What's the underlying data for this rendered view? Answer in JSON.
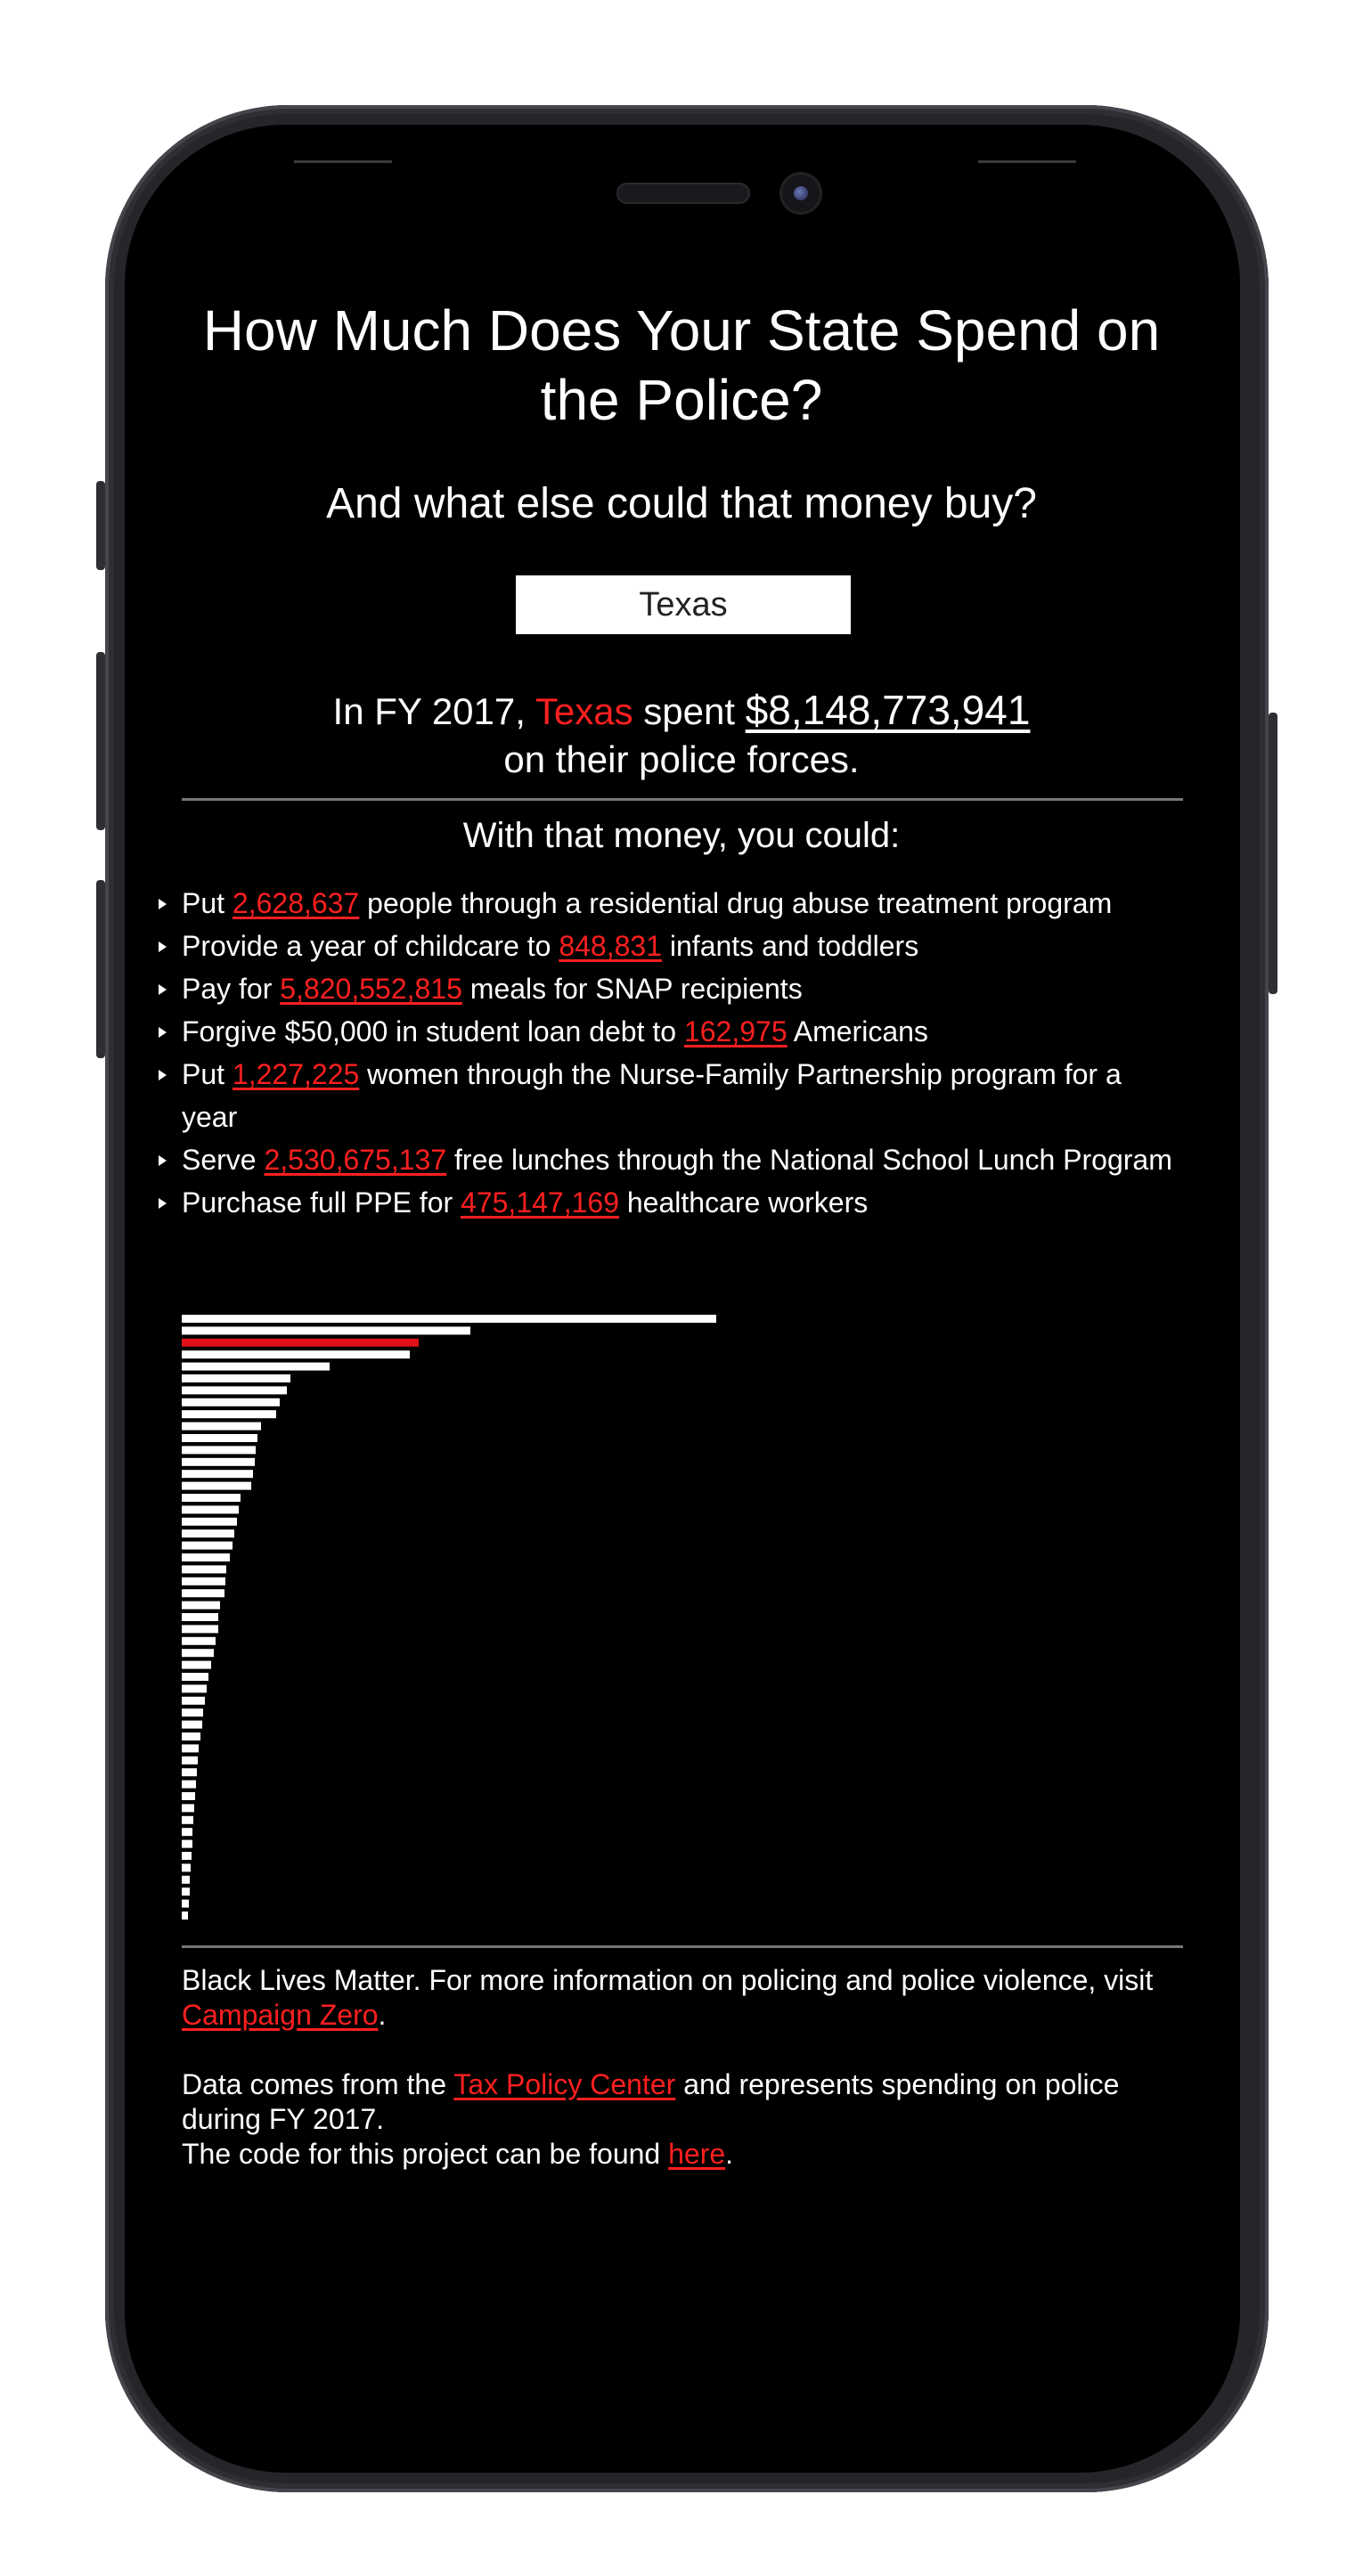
{
  "header": {
    "title": "How Much Does Your State Spend on the Police?",
    "subtitle": "And what else could that money buy?"
  },
  "selector": {
    "selected": "Texas"
  },
  "summary": {
    "prefix": "In FY 2017,",
    "state": "Texas",
    "verb": "spent",
    "amount": "$8,148,773,941",
    "suffix": "on their police forces."
  },
  "section_heading": "With that money, you could:",
  "alternatives": [
    {
      "before": "Put ",
      "value": "2,628,637",
      "after": " people through a residential drug abuse treatment program"
    },
    {
      "before": "Provide a year of childcare to ",
      "value": "848,831",
      "after": " infants and toddlers"
    },
    {
      "before": "Pay for ",
      "value": "5,820,552,815",
      "after": " meals for SNAP recipients"
    },
    {
      "before": "Forgive $50,000 in student loan debt to ",
      "value": "162,975",
      "after": " Americans"
    },
    {
      "before": "Put ",
      "value": "1,227,225",
      "after": " women through the Nurse-Family Partnership program for a year"
    },
    {
      "before": "Serve ",
      "value": "2,530,675,137",
      "after": " free lunches through the National School Lunch Program"
    },
    {
      "before": "Purchase full PPE for ",
      "value": "475,147,169",
      "after": " healthcare workers"
    }
  ],
  "chart_data": {
    "type": "bar",
    "orientation": "horizontal",
    "highlight_color": "#e0101a",
    "bar_color": "#ffffff",
    "highlight_index": 2,
    "values": [
      600,
      324,
      266,
      256,
      166,
      122,
      118,
      110,
      106,
      89,
      85,
      83,
      82,
      80,
      78,
      66,
      64,
      62,
      59,
      57,
      54,
      50,
      49,
      48,
      43,
      41,
      41,
      38,
      36,
      33,
      30,
      28,
      26,
      24,
      23,
      21,
      19,
      18,
      17,
      16,
      15,
      14,
      13,
      12,
      12,
      11,
      10,
      9,
      9,
      8,
      7
    ]
  },
  "footer": {
    "blm_text": "Black Lives Matter. For more information on policing and police violence, visit ",
    "campaign_link": "Campaign Zero",
    "period1": ".",
    "data_text": "Data comes from the ",
    "tpc_link": "Tax Policy Center",
    "data_suffix": " and represents spending on police during FY 2017.",
    "code_text": "The code for this project can be found ",
    "code_link": "here",
    "period2": "."
  }
}
